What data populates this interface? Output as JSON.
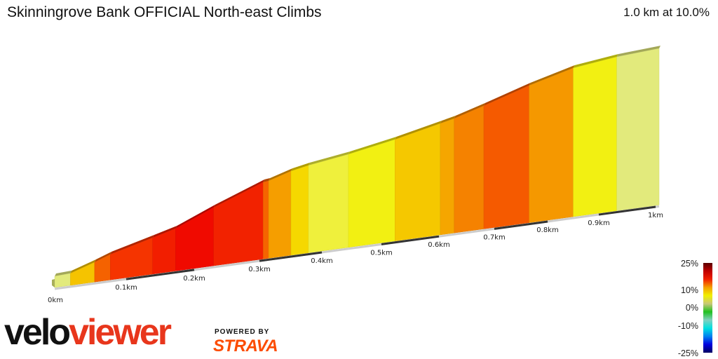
{
  "header": {
    "title": "Skinningrove Bank OFFICIAL North-east Climbs",
    "summary": "1.0 km at 10.0%"
  },
  "branding": {
    "logo_part1": "velo",
    "logo_part2": "viewer",
    "powered_by": "POWERED BY",
    "strava": "STRAVA"
  },
  "chart_data": {
    "type": "area",
    "title": "Skinningrove Bank OFFICIAL North-east Climbs",
    "xlabel": "",
    "ylabel": "",
    "x_unit": "km",
    "xlim": [
      0,
      1.0
    ],
    "tick_labels": [
      "0km",
      "0.1km",
      "0.2km",
      "0.3km",
      "0.4km",
      "0.5km",
      "0.6km",
      "0.7km",
      "0.8km",
      "0.9km",
      "1km"
    ],
    "profile": {
      "km": [
        0,
        0.026,
        0.066,
        0.092,
        0.162,
        0.2,
        0.263,
        0.345,
        0.354,
        0.391,
        0.42,
        0.486,
        0.563,
        0.638,
        0.661,
        0.71,
        0.785,
        0.858,
        0.93,
        1.0
      ],
      "elevation_gain_m": [
        0,
        0.5,
        5.9,
        9.8,
        17.3,
        21.5,
        32.4,
        45.2,
        45.6,
        50.2,
        52.5,
        56.4,
        62.2,
        69.0,
        71.1,
        77.1,
        86.8,
        94.7,
        98.3,
        100.1
      ]
    },
    "segment_colors": [
      "#e2ea7c",
      "#f5c300",
      "#f56200",
      "#f53400",
      "#f21e00",
      "#f00a00",
      "#f22200",
      "#f56400",
      "#f59e00",
      "#f5d800",
      "#eff03c",
      "#f2f012",
      "#f5c800",
      "#f5a600",
      "#f58200",
      "#f55a00",
      "#f59800",
      "#f2f012",
      "#e2ea7c"
    ],
    "legend": {
      "labels": [
        "25%",
        "10%",
        "0%",
        "-10%",
        "-25%"
      ],
      "values": [
        25,
        10,
        0,
        -10,
        -25
      ],
      "colors": [
        "#5a0000",
        "#c00000",
        "#f02000",
        "#f5a000",
        "#f0f000",
        "#c8c878",
        "#20c020",
        "#80d0c0",
        "#00e0e0",
        "#0080f0",
        "#0000e0",
        "#000060"
      ]
    }
  }
}
